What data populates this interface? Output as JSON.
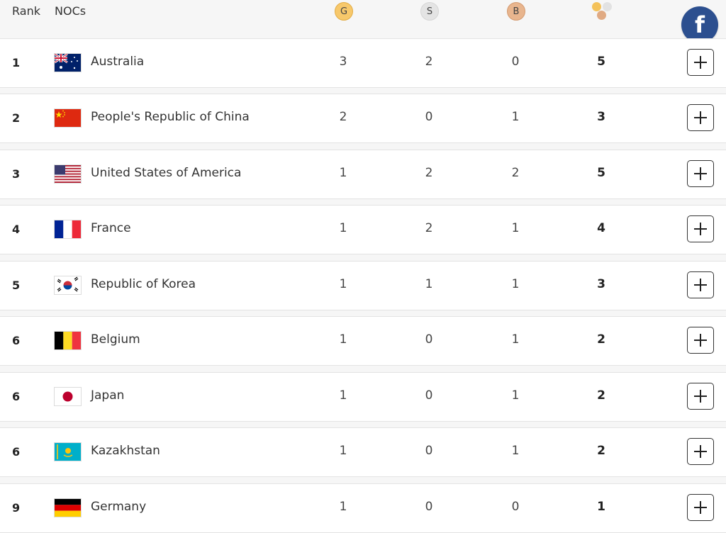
{
  "header": {
    "rank_label": "Rank",
    "noc_label": "NOCs",
    "gold_label": "G",
    "silver_label": "S",
    "bronze_label": "B",
    "total_icon": "medals-total-icon",
    "facebook_icon": "facebook-icon",
    "facebook_glyph": "f"
  },
  "colors": {
    "gold": "#f7c86b",
    "silver": "#e4e4e4",
    "bronze": "#e8b58e",
    "facebook": "#2c4f8f"
  },
  "rows": [
    {
      "rank": "1",
      "country": "Australia",
      "flag": "australia-flag",
      "gold": "3",
      "silver": "2",
      "bronze": "0",
      "total": "5"
    },
    {
      "rank": "2",
      "country": "People's Republic of China",
      "flag": "china-flag",
      "gold": "2",
      "silver": "0",
      "bronze": "1",
      "total": "3"
    },
    {
      "rank": "3",
      "country": "United States of America",
      "flag": "usa-flag",
      "gold": "1",
      "silver": "2",
      "bronze": "2",
      "total": "5"
    },
    {
      "rank": "4",
      "country": "France",
      "flag": "france-flag",
      "gold": "1",
      "silver": "2",
      "bronze": "1",
      "total": "4"
    },
    {
      "rank": "5",
      "country": "Republic of Korea",
      "flag": "korea-flag",
      "gold": "1",
      "silver": "1",
      "bronze": "1",
      "total": "3"
    },
    {
      "rank": "6",
      "country": "Belgium",
      "flag": "belgium-flag",
      "gold": "1",
      "silver": "0",
      "bronze": "1",
      "total": "2"
    },
    {
      "rank": "6",
      "country": "Japan",
      "flag": "japan-flag",
      "gold": "1",
      "silver": "0",
      "bronze": "1",
      "total": "2"
    },
    {
      "rank": "6",
      "country": "Kazakhstan",
      "flag": "kazakhstan-flag",
      "gold": "1",
      "silver": "0",
      "bronze": "1",
      "total": "2"
    },
    {
      "rank": "9",
      "country": "Germany",
      "flag": "germany-flag",
      "gold": "1",
      "silver": "0",
      "bronze": "0",
      "total": "1"
    }
  ]
}
